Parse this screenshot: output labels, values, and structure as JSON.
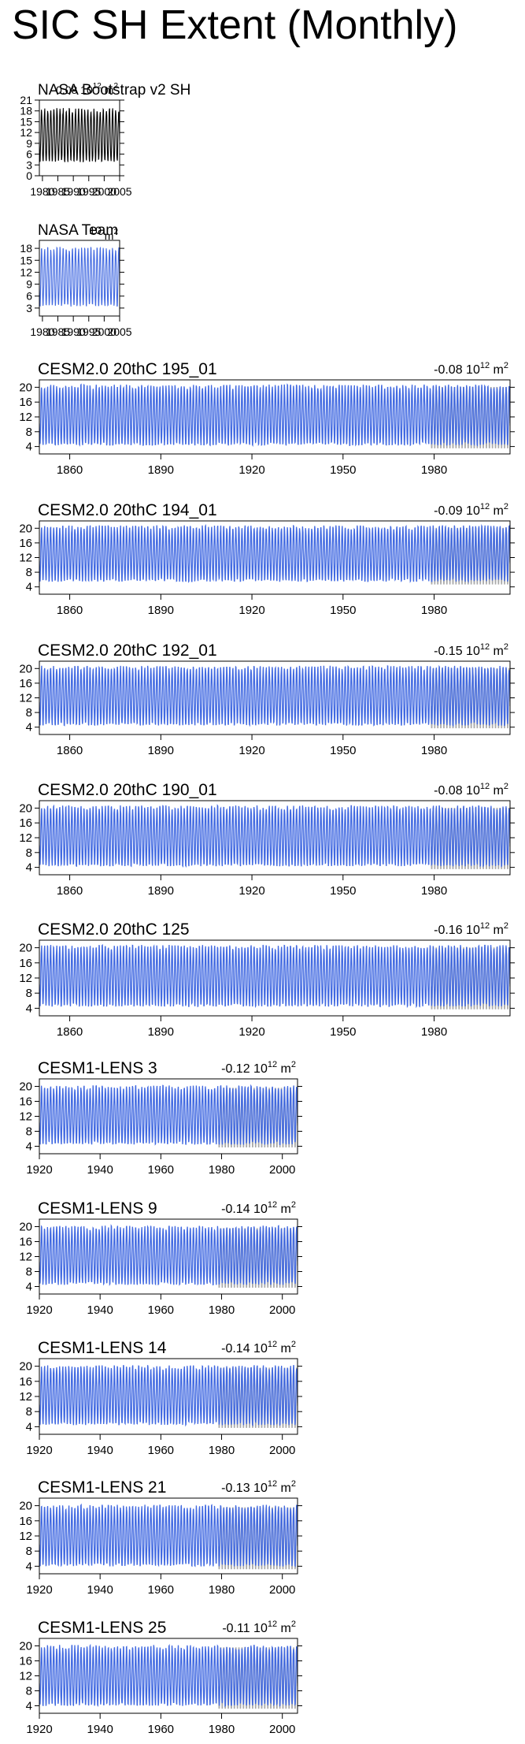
{
  "page": {
    "title": "SIC SH Extent (Monthly)"
  },
  "colors": {
    "series": "#4169e1",
    "obs": "#000000",
    "overlay": "#a9a9a9",
    "axis": "#000000"
  },
  "chart_data": [
    {
      "type": "line",
      "title": "NASA Bootstrap v2 SH",
      "trend": "-0.08",
      "trend_exp": "12",
      "trend_unit": "m",
      "trend_unit_exp": "2",
      "x_start": 1979,
      "x_end": 2005,
      "xticks": [
        1980,
        1985,
        1990,
        1995,
        2000,
        2005
      ],
      "ylim": [
        0,
        21
      ],
      "yticks": [
        0,
        3,
        6,
        9,
        12,
        15,
        18,
        21
      ],
      "series_color": "#000000",
      "overlay": false,
      "min": 3.4,
      "max": 19.0
    },
    {
      "type": "line",
      "title": "NASA Team",
      "trend": "",
      "trend_exp": "",
      "trend_unit": "m",
      "trend_unit_exp": "2",
      "x_start": 1979,
      "x_end": 2005,
      "xticks": [
        1980,
        1985,
        1990,
        1995,
        2000,
        2005
      ],
      "ylim": [
        1,
        20
      ],
      "yticks": [
        3,
        6,
        9,
        12,
        15,
        18
      ],
      "series_color": "#4169e1",
      "overlay": false,
      "min": 3.0,
      "max": 18.6
    },
    {
      "type": "line",
      "title": "CESM2.0 20thC 195_01",
      "trend": "-0.08",
      "trend_exp": "12",
      "trend_unit": "m",
      "trend_unit_exp": "2",
      "x_start": 1850,
      "x_end": 2005,
      "xticks": [
        1860,
        1890,
        1920,
        1950,
        1980
      ],
      "ylim": [
        2,
        22
      ],
      "yticks": [
        4,
        8,
        12,
        16,
        20
      ],
      "series_color": "#4169e1",
      "overlay": true,
      "min": 3.8,
      "max": 21.0
    },
    {
      "type": "line",
      "title": "CESM2.0 20thC 194_01",
      "trend": "-0.09",
      "trend_exp": "12",
      "trend_unit": "m",
      "trend_unit_exp": "2",
      "x_start": 1850,
      "x_end": 2005,
      "xticks": [
        1860,
        1890,
        1920,
        1950,
        1980
      ],
      "ylim": [
        2,
        22
      ],
      "yticks": [
        4,
        8,
        12,
        16,
        20
      ],
      "series_color": "#4169e1",
      "overlay": true,
      "min": 5.0,
      "max": 21.0
    },
    {
      "type": "line",
      "title": "CESM2.0 20thC 192_01",
      "trend": "-0.15",
      "trend_exp": "12",
      "trend_unit": "m",
      "trend_unit_exp": "2",
      "x_start": 1850,
      "x_end": 2005,
      "xticks": [
        1860,
        1890,
        1920,
        1950,
        1980
      ],
      "ylim": [
        2,
        22
      ],
      "yticks": [
        4,
        8,
        12,
        16,
        20
      ],
      "series_color": "#4169e1",
      "overlay": true,
      "min": 4.0,
      "max": 21.0
    },
    {
      "type": "line",
      "title": "CESM2.0 20thC 190_01",
      "trend": "-0.08",
      "trend_exp": "12",
      "trend_unit": "m",
      "trend_unit_exp": "2",
      "x_start": 1850,
      "x_end": 2005,
      "xticks": [
        1860,
        1890,
        1920,
        1950,
        1980
      ],
      "ylim": [
        2,
        22
      ],
      "yticks": [
        4,
        8,
        12,
        16,
        20
      ],
      "series_color": "#4169e1",
      "overlay": true,
      "min": 3.8,
      "max": 21.0
    },
    {
      "type": "line",
      "title": "CESM2.0 20thC 125",
      "trend": "-0.16",
      "trend_exp": "12",
      "trend_unit": "m",
      "trend_unit_exp": "2",
      "x_start": 1850,
      "x_end": 2005,
      "xticks": [
        1860,
        1890,
        1920,
        1950,
        1980
      ],
      "ylim": [
        2,
        22
      ],
      "yticks": [
        4,
        8,
        12,
        16,
        20
      ],
      "series_color": "#4169e1",
      "overlay": true,
      "min": 4.0,
      "max": 21.0
    },
    {
      "type": "line",
      "title": "CESM1-LENS 3",
      "trend": "-0.12",
      "trend_exp": "12",
      "trend_unit": "m",
      "trend_unit_exp": "2",
      "x_start": 1920,
      "x_end": 2005,
      "xticks": [
        1920,
        1940,
        1960,
        1980,
        2000
      ],
      "ylim": [
        2,
        22
      ],
      "yticks": [
        4,
        8,
        12,
        16,
        20
      ],
      "series_color": "#4169e1",
      "overlay": true,
      "min": 4.0,
      "max": 20.5
    },
    {
      "type": "line",
      "title": "CESM1-LENS 9",
      "trend": "-0.14",
      "trend_exp": "12",
      "trend_unit": "m",
      "trend_unit_exp": "2",
      "x_start": 1920,
      "x_end": 2005,
      "xticks": [
        1920,
        1940,
        1960,
        1980,
        2000
      ],
      "ylim": [
        2,
        22
      ],
      "yticks": [
        4,
        8,
        12,
        16,
        20
      ],
      "series_color": "#4169e1",
      "overlay": true,
      "min": 4.0,
      "max": 20.5
    },
    {
      "type": "line",
      "title": "CESM1-LENS 14",
      "trend": "-0.14",
      "trend_exp": "12",
      "trend_unit": "m",
      "trend_unit_exp": "2",
      "x_start": 1920,
      "x_end": 2005,
      "xticks": [
        1920,
        1940,
        1960,
        1980,
        2000
      ],
      "ylim": [
        2,
        22
      ],
      "yticks": [
        4,
        8,
        12,
        16,
        20
      ],
      "series_color": "#4169e1",
      "overlay": true,
      "min": 4.0,
      "max": 20.5
    },
    {
      "type": "line",
      "title": "CESM1-LENS 21",
      "trend": "-0.13",
      "trend_exp": "12",
      "trend_unit": "m",
      "trend_unit_exp": "2",
      "x_start": 1920,
      "x_end": 2005,
      "xticks": [
        1920,
        1940,
        1960,
        1980,
        2000
      ],
      "ylim": [
        2,
        22
      ],
      "yticks": [
        4,
        8,
        12,
        16,
        20
      ],
      "series_color": "#4169e1",
      "overlay": true,
      "min": 3.5,
      "max": 20.5
    },
    {
      "type": "line",
      "title": "CESM1-LENS 25",
      "trend": "-0.11",
      "trend_exp": "12",
      "trend_unit": "m",
      "trend_unit_exp": "2",
      "x_start": 1920,
      "x_end": 2005,
      "xticks": [
        1920,
        1940,
        1960,
        1980,
        2000
      ],
      "ylim": [
        2,
        22
      ],
      "yticks": [
        4,
        8,
        12,
        16,
        20
      ],
      "series_color": "#4169e1",
      "overlay": true,
      "min": 3.5,
      "max": 20.5
    }
  ]
}
